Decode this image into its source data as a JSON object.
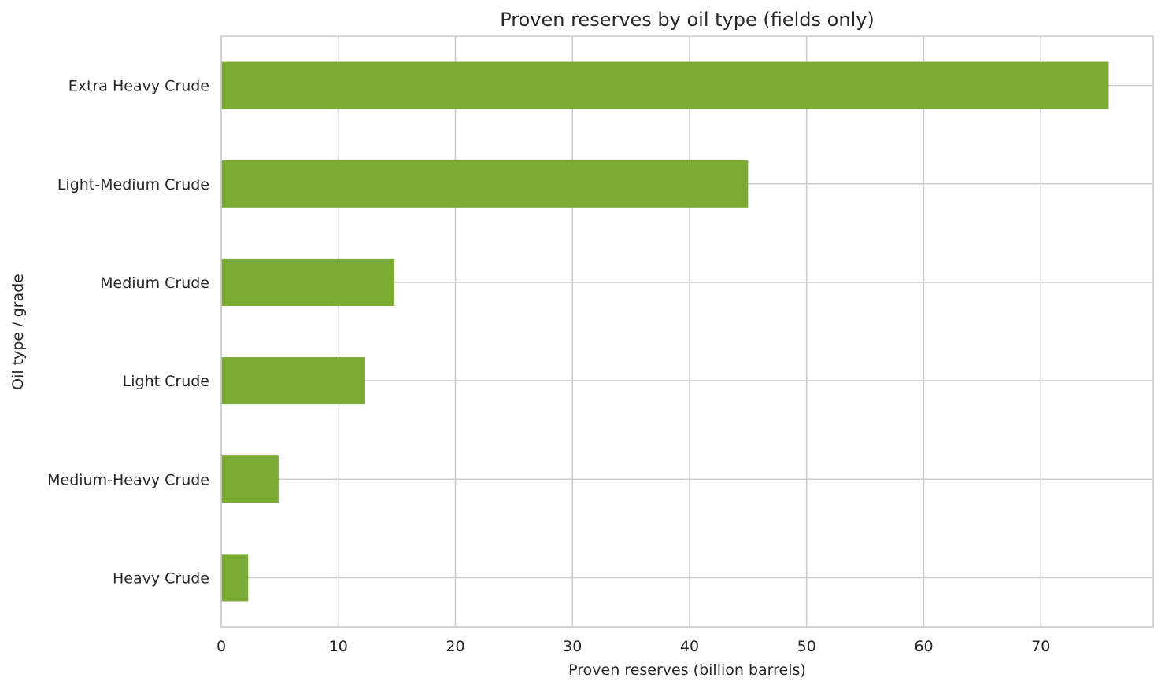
{
  "chart_data": {
    "type": "bar",
    "orientation": "horizontal",
    "title": "Proven reserves by oil type (fields only)",
    "xlabel": "Proven reserves (billion barrels)",
    "ylabel": "Oil type / grade",
    "categories": [
      "Extra Heavy Crude",
      "Light-Medium Crude",
      "Medium Crude",
      "Light Crude",
      "Medium-Heavy Crude",
      "Heavy Crude"
    ],
    "values": [
      75.8,
      45.0,
      14.8,
      12.3,
      4.9,
      2.3
    ],
    "xlim": [
      0,
      79.6
    ],
    "xticks": [
      0,
      10,
      20,
      30,
      40,
      50,
      60,
      70
    ],
    "grid": true,
    "bar_color": "#7aab33",
    "grid_color": "#cccccc",
    "text_color": "#262626"
  }
}
